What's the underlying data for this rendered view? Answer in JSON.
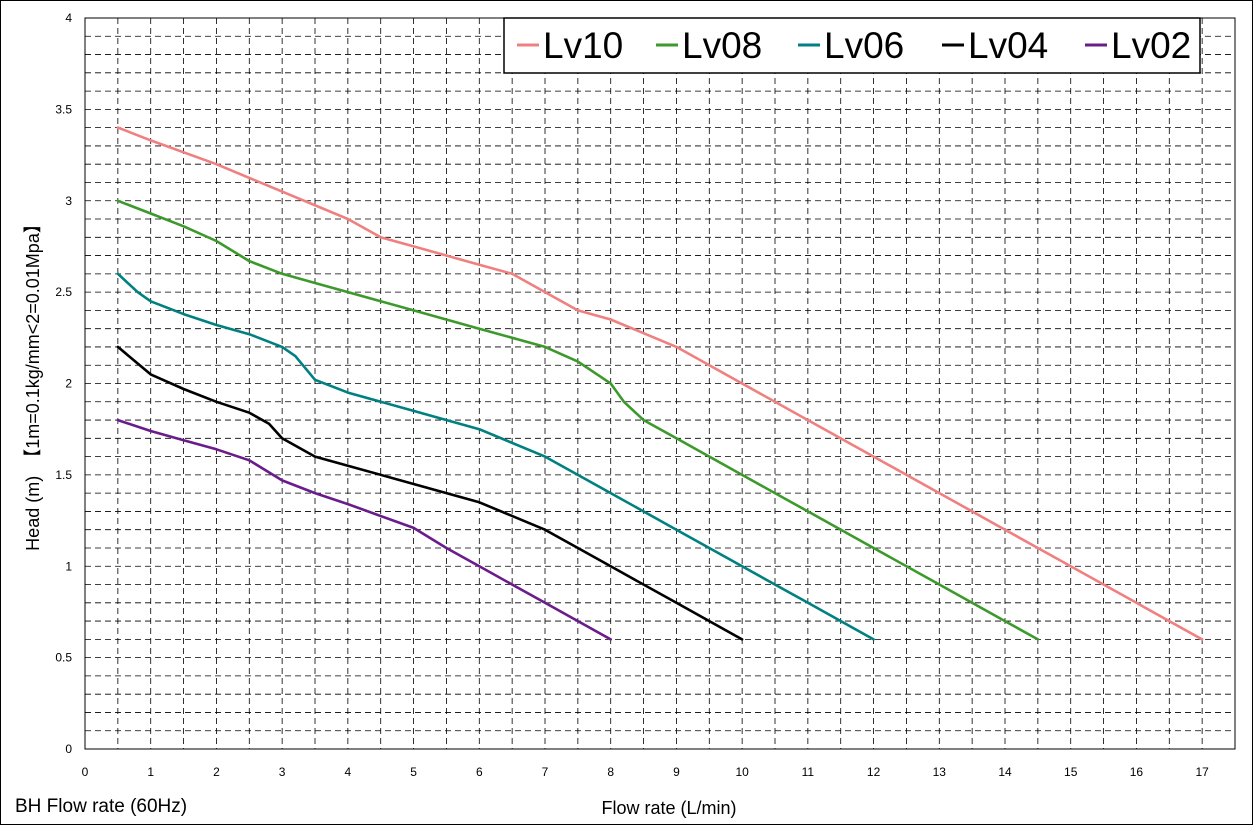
{
  "footnote": "BH Flow rate (60Hz)",
  "chart_data": {
    "type": "line",
    "title": "",
    "xlabel": "Flow rate (L/min)",
    "ylabel": "Head (m)　【1m=0.1kg/mm<2=0.01Mpa】",
    "xlim": [
      0,
      17.5
    ],
    "ylim": [
      0,
      4
    ],
    "xticks": [
      0,
      1,
      2,
      3,
      4,
      5,
      6,
      7,
      8,
      9,
      10,
      11,
      12,
      13,
      14,
      15,
      16,
      17
    ],
    "yticks": [
      0,
      0.5,
      1,
      1.5,
      2,
      2.5,
      3,
      3.5,
      4
    ],
    "grid": true,
    "legend_position": "top-right",
    "series": [
      {
        "name": "Lv10",
        "color": "#f08080",
        "points": [
          [
            0.5,
            3.4
          ],
          [
            1,
            3.33
          ],
          [
            2,
            3.2
          ],
          [
            3,
            3.05
          ],
          [
            4,
            2.9
          ],
          [
            4.5,
            2.8
          ],
          [
            5,
            2.75
          ],
          [
            6,
            2.65
          ],
          [
            6.5,
            2.6
          ],
          [
            7,
            2.5
          ],
          [
            7.5,
            2.4
          ],
          [
            8,
            2.35
          ],
          [
            9,
            2.2
          ],
          [
            10,
            2.0
          ],
          [
            11,
            1.8
          ],
          [
            12,
            1.6
          ],
          [
            13,
            1.4
          ],
          [
            14,
            1.2
          ],
          [
            15,
            1.0
          ],
          [
            16,
            0.8
          ],
          [
            17,
            0.6
          ]
        ]
      },
      {
        "name": "Lv08",
        "color": "#3c9a2c",
        "points": [
          [
            0.5,
            3.0
          ],
          [
            1,
            2.93
          ],
          [
            1.5,
            2.86
          ],
          [
            2,
            2.78
          ],
          [
            2.5,
            2.67
          ],
          [
            3,
            2.6
          ],
          [
            3.5,
            2.55
          ],
          [
            4,
            2.5
          ],
          [
            5,
            2.4
          ],
          [
            6,
            2.3
          ],
          [
            7,
            2.2
          ],
          [
            7.5,
            2.12
          ],
          [
            8,
            2.0
          ],
          [
            8.2,
            1.9
          ],
          [
            8.5,
            1.8
          ],
          [
            9,
            1.7
          ],
          [
            10,
            1.5
          ],
          [
            11,
            1.3
          ],
          [
            12,
            1.1
          ],
          [
            13,
            0.9
          ],
          [
            14,
            0.7
          ],
          [
            14.5,
            0.6
          ]
        ]
      },
      {
        "name": "Lv06",
        "color": "#008080",
        "points": [
          [
            0.5,
            2.6
          ],
          [
            0.8,
            2.5
          ],
          [
            1,
            2.45
          ],
          [
            1.5,
            2.38
          ],
          [
            2,
            2.32
          ],
          [
            2.5,
            2.27
          ],
          [
            3,
            2.2
          ],
          [
            3.2,
            2.15
          ],
          [
            3.5,
            2.02
          ],
          [
            4,
            1.95
          ],
          [
            5,
            1.85
          ],
          [
            6,
            1.75
          ],
          [
            7,
            1.6
          ],
          [
            8,
            1.4
          ],
          [
            9,
            1.2
          ],
          [
            10,
            1.0
          ],
          [
            11,
            0.8
          ],
          [
            12,
            0.6
          ]
        ]
      },
      {
        "name": "Lv04",
        "color": "#000000",
        "points": [
          [
            0.5,
            2.2
          ],
          [
            1,
            2.05
          ],
          [
            1.5,
            1.97
          ],
          [
            2,
            1.9
          ],
          [
            2.5,
            1.84
          ],
          [
            2.8,
            1.78
          ],
          [
            3,
            1.7
          ],
          [
            3.5,
            1.6
          ],
          [
            4,
            1.55
          ],
          [
            5,
            1.45
          ],
          [
            6,
            1.35
          ],
          [
            7,
            1.2
          ],
          [
            7.5,
            1.1
          ],
          [
            8,
            1.0
          ],
          [
            9,
            0.8
          ],
          [
            10,
            0.6
          ]
        ]
      },
      {
        "name": "Lv02",
        "color": "#6a1d8a",
        "points": [
          [
            0.5,
            1.8
          ],
          [
            1,
            1.74
          ],
          [
            1.5,
            1.69
          ],
          [
            2,
            1.64
          ],
          [
            2.5,
            1.58
          ],
          [
            3,
            1.47
          ],
          [
            3.5,
            1.4
          ],
          [
            4,
            1.34
          ],
          [
            5,
            1.21
          ],
          [
            5.5,
            1.1
          ],
          [
            6,
            1.0
          ],
          [
            7,
            0.8
          ],
          [
            8,
            0.6
          ]
        ]
      }
    ]
  }
}
